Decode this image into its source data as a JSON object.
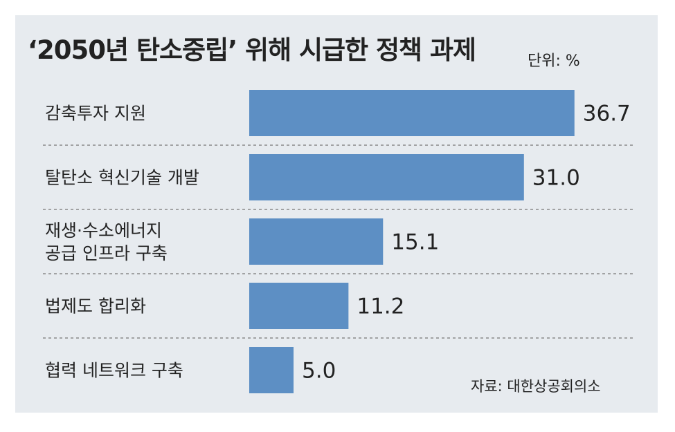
{
  "title": "‘2050년 탄소중립’ 위해 시급한 정책 과제",
  "unit": "단위: %",
  "source": "자료: 대한상공회의소",
  "chart_data": {
    "type": "bar",
    "orientation": "horizontal",
    "categories": [
      "감축투자 지원",
      "탈탄소 혁신기술 개발",
      "재생·수소에너지 공급 인프라 구축",
      "법제도 합리화",
      "협력 네트워크 구축"
    ],
    "category_lines": [
      [
        "감축투자 지원"
      ],
      [
        "탈탄소 혁신기술 개발"
      ],
      [
        "재생·수소에너지",
        "공급 인프라 구축"
      ],
      [
        "법제도 합리화"
      ],
      [
        "협력 네트워크 구축"
      ]
    ],
    "values": [
      36.7,
      31.0,
      15.1,
      11.2,
      5.0
    ],
    "value_labels": [
      "36.7",
      "31.0",
      "15.1",
      "11.2",
      "5.0"
    ],
    "title": "‘2050년 탄소중립’ 위해 시급한 정책 과제",
    "xlabel": "",
    "ylabel": "",
    "grid": false,
    "legend": "none",
    "bar_color": "#5d8fc4"
  }
}
